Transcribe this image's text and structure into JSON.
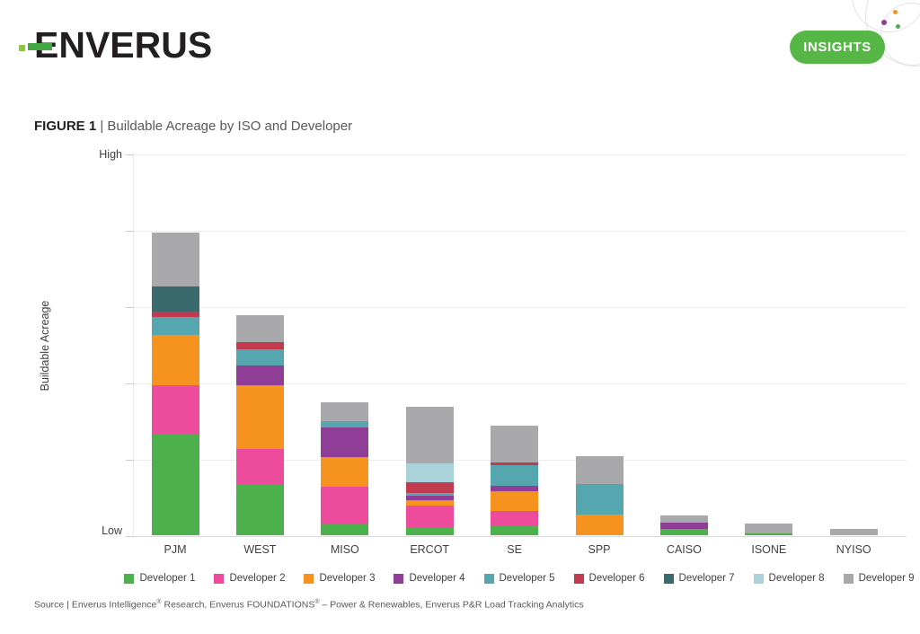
{
  "header": {
    "logo_text": "ENVERUS",
    "insights_label": "INSIGHTS",
    "brand_green": "#56B747"
  },
  "figure": {
    "label": "FIGURE 1",
    "separator": " | ",
    "title": "Buildable Acreage by ISO and Developer"
  },
  "chart": {
    "y_axis_title": "Buildable Acreage",
    "y_top_label": "High",
    "y_bottom_label": "Low"
  },
  "chart_data": {
    "type": "bar",
    "stacked": true,
    "title": "Buildable Acreage by ISO and Developer",
    "xlabel": "",
    "ylabel": "Buildable Acreage",
    "y_axis_tick_labels": [
      "Low",
      "High"
    ],
    "ylim": [
      0,
      100
    ],
    "value_unit": "relative buildable acreage, 0 = Low axis line, 100 = High axis line",
    "grid": "horizontal",
    "legend_position": "bottom",
    "categories": [
      "PJM",
      "WEST",
      "MISO",
      "ERCOT",
      "SE",
      "SPP",
      "CAISO",
      "ISONE",
      "NYISO"
    ],
    "series": [
      {
        "name": "Developer 1",
        "color": "#4CB04C",
        "values": [
          26.4,
          13.2,
          2.8,
          2.1,
          2.6,
          0,
          1.6,
          0.5,
          0
        ]
      },
      {
        "name": "Developer 2",
        "color": "#EC4C9B",
        "values": [
          12.9,
          9.4,
          9.9,
          5.6,
          3.8,
          0,
          0,
          0,
          0
        ]
      },
      {
        "name": "Developer 3",
        "color": "#F6921E",
        "values": [
          13.2,
          16.7,
          7.8,
          1.4,
          5.2,
          5.4,
          0,
          0,
          0
        ]
      },
      {
        "name": "Developer 4",
        "color": "#8F3D97",
        "values": [
          0,
          5.2,
          7.8,
          1.4,
          1.4,
          0,
          1.6,
          0,
          0
        ]
      },
      {
        "name": "Developer 5",
        "color": "#55A6AE",
        "values": [
          4.7,
          4.2,
          1.6,
          0.7,
          5.4,
          8.0,
          0,
          0,
          0
        ]
      },
      {
        "name": "Developer 6",
        "color": "#C23A50",
        "values": [
          1.4,
          1.9,
          0,
          2.8,
          0.7,
          0,
          0,
          0,
          0
        ]
      },
      {
        "name": "Developer 7",
        "color": "#3A696E",
        "values": [
          6.6,
          0,
          0,
          0,
          0,
          0,
          0,
          0,
          0
        ]
      },
      {
        "name": "Developer 8",
        "color": "#A9D2DA",
        "values": [
          0,
          0,
          0,
          4.9,
          0,
          0,
          0,
          0,
          0
        ]
      },
      {
        "name": "Developer 9",
        "color": "#A9A8AA",
        "values": [
          14.1,
          7.1,
          4.9,
          14.8,
          9.6,
          7.3,
          1.9,
          2.6,
          1.6
        ]
      }
    ],
    "category_totals": [
      79.3,
      57.7,
      34.8,
      33.7,
      28.7,
      20.7,
      5.1,
      3.1,
      1.6
    ]
  },
  "source": {
    "text": "Source | Enverus Intelligence® Research, Enverus FOUNDATIONS® – Power & Renewables, Enverus P&R Load Tracking Analytics"
  }
}
